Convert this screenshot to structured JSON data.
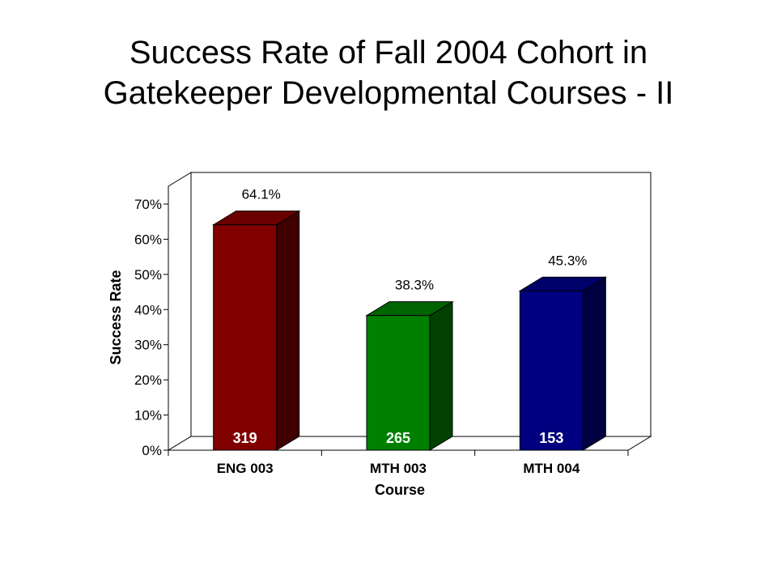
{
  "title_lines": [
    "Success Rate of Fall 2004 Cohort in",
    "Gatekeeper Developmental Courses - II"
  ],
  "chart_data": {
    "type": "bar",
    "title": "Success Rate of Fall 2004 Cohort in Gatekeeper Developmental Courses - II",
    "categories": [
      "ENG 003",
      "MTH 003",
      "MTH 004"
    ],
    "values": [
      64.1,
      38.3,
      45.3
    ],
    "value_labels": [
      "64.1%",
      "38.3%",
      "45.3%"
    ],
    "counts": [
      "319",
      "265",
      "153"
    ],
    "xlabel": "Course",
    "ylabel": "Success Rate",
    "ylim": [
      0,
      70
    ],
    "yticks": [
      0,
      10,
      20,
      30,
      40,
      50,
      60,
      70
    ],
    "ytick_labels": [
      "0%",
      "10%",
      "20%",
      "30%",
      "40%",
      "50%",
      "60%",
      "70%"
    ],
    "colors": [
      {
        "front": "#800000",
        "side": "#400000",
        "top": "#6b0000"
      },
      {
        "front": "#008000",
        "side": "#004000",
        "top": "#006400"
      },
      {
        "front": "#000080",
        "side": "#000040",
        "top": "#00006b"
      }
    ],
    "grid": false,
    "legend": "none",
    "style": "3d"
  }
}
